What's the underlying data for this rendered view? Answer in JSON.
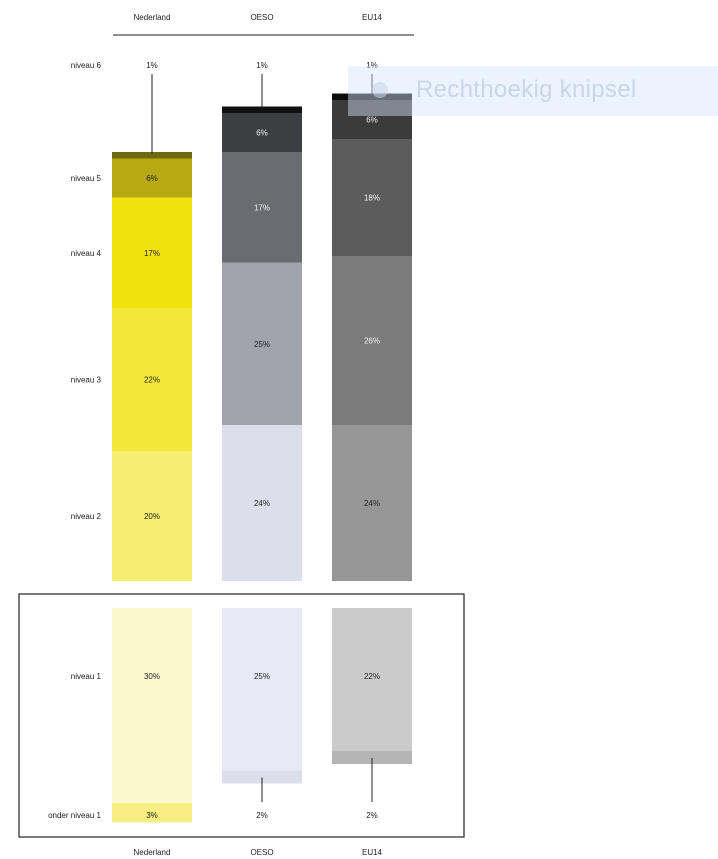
{
  "chart_data": {
    "type": "bar",
    "stacked": true,
    "countries": [
      "Nederland",
      "OESO",
      "EU14"
    ],
    "upper_levels": [
      "niveau 6",
      "niveau 5",
      "niveau 4",
      "niveau 3",
      "niveau 2"
    ],
    "lower_levels": [
      "niveau 1",
      "onder niveau 1"
    ],
    "series": {
      "Nederland": {
        "values": {
          "niveau 6": 1,
          "niveau 5": 6,
          "niveau 4": 17,
          "niveau 3": 22,
          "niveau 2": 20,
          "niveau 1": 30,
          "onder niveau 1": 3
        },
        "labels": {
          "niveau 6": "1%",
          "niveau 5": "6%",
          "niveau 4": "17%",
          "niveau 3": "22%",
          "niveau 2": "20%",
          "niveau 1": "30%",
          "onder niveau 1": "3%"
        },
        "colors": {
          "niveau 6": "#6e6a10",
          "niveau 5": "#b6a912",
          "niveau 4": "#f1e20d",
          "niveau 3": "#f3e73a",
          "niveau 2": "#f6ee70",
          "niveau 1": "#fbf8cd",
          "onder niveau 1": "#f6ee80"
        }
      },
      "OESO": {
        "values": {
          "niveau 6": 1,
          "niveau 5": 6,
          "niveau 4": 17,
          "niveau 3": 25,
          "niveau 2": 24,
          "niveau 1": 25,
          "onder niveau 1": 2
        },
        "labels": {
          "niveau 6": "1%",
          "niveau 5": "6%",
          "niveau 4": "17%",
          "niveau 3": "25%",
          "niveau 2": "24%",
          "niveau 1": "25%",
          "onder niveau 1": "2%"
        },
        "colors": {
          "niveau 6": "#111111",
          "niveau 5": "#3d3e42",
          "niveau 4": "#6a6c72",
          "niveau 3": "#a1a3ad",
          "niveau 2": "#dcdeec",
          "niveau 1": "#e8e9f4",
          "onder niveau 1": "#dcdeea"
        }
      },
      "EU14": {
        "values": {
          "niveau 6": 1,
          "niveau 5": 6,
          "niveau 4": 18,
          "niveau 3": 26,
          "niveau 2": 24,
          "niveau 1": 22,
          "onder niveau 1": 2
        },
        "labels": {
          "niveau 6": "1%",
          "niveau 5": "6%",
          "niveau 4": "18%",
          "niveau 3": "26%",
          "niveau 2": "24%",
          "niveau 1": "22%",
          "onder niveau 1": "2%"
        },
        "colors": {
          "niveau 6": "#0d0d0d",
          "niveau 5": "#3b3b3b",
          "niveau 4": "#5c5c5c",
          "niveau 3": "#7b7b7b",
          "niveau 2": "#979797",
          "niveau 1": "#cbcbcb",
          "onder niveau 1": "#b5b5b5"
        }
      }
    },
    "grid": false,
    "legend": "none"
  },
  "overlay": {
    "label": "Rechthoekig knipsel"
  }
}
